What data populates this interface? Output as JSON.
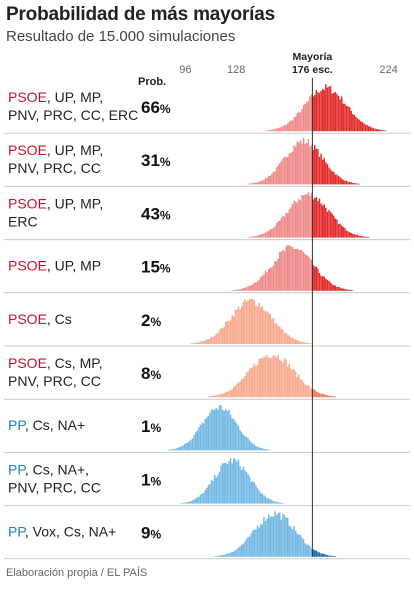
{
  "title": "Probabilidad de más mayorías",
  "subtitle": "Resultado de 15.000 simulaciones",
  "source": "Elaboración propia / EL PAÍS",
  "chart_data": {
    "type": "histogram",
    "x_ticks": [
      96,
      128,
      176,
      224
    ],
    "x_tick_labels": [
      "96",
      "128",
      "",
      "224"
    ],
    "xlim": [
      80,
      240
    ],
    "majority_line": {
      "value": 176,
      "label_1": "Mayoría",
      "label_2": "176 esc."
    },
    "prob_header": "Prob.",
    "colors": {
      "psoe_text": "#c8102e",
      "pp_text": "#1b7fc4",
      "red_dark": "#e32a2a",
      "red_light": "#ef8a8a",
      "salmon_dark": "#ee7a5c",
      "salmon_light": "#f6aa8e",
      "blue_light": "#74b9e3",
      "blue_dark": "#1f6fae"
    },
    "rows": [
      {
        "party": "PSOE",
        "rest_line1": ", UP, MP,",
        "line2": "PNV, PRC, CC, ERC",
        "prob": "66",
        "mean": 184,
        "sd": 13,
        "palette": "red"
      },
      {
        "party": "PSOE",
        "rest_line1": ", UP, MP,",
        "line2": "PNV, PRC, CC",
        "prob": "31",
        "mean": 170,
        "sd": 12,
        "palette": "red"
      },
      {
        "party": "PSOE",
        "rest_line1": ", UP, MP,",
        "line2": "ERC",
        "prob": "43",
        "mean": 173,
        "sd": 13,
        "palette": "red"
      },
      {
        "party": "PSOE",
        "rest_line1": ", UP, MP",
        "line2": "",
        "prob": "15",
        "mean": 163,
        "sd": 13,
        "palette": "red"
      },
      {
        "party": "PSOE",
        "rest_line1": ", Cs",
        "line2": "",
        "prob": "2",
        "mean": 137,
        "sd": 13,
        "palette": "salmon"
      },
      {
        "party": "PSOE",
        "rest_line1": ", Cs, MP,",
        "line2": "PNV, PRC, CC",
        "prob": "8",
        "mean": 150,
        "sd": 14,
        "palette": "salmon"
      },
      {
        "party": "PP",
        "rest_line1": ", Cs, NA+",
        "line2": "",
        "prob": "1",
        "mean": 117,
        "sd": 11,
        "palette": "blue"
      },
      {
        "party": "PP",
        "rest_line1": ", Cs, NA+,",
        "line2": "PNV, PRC, CC",
        "prob": "1",
        "mean": 125,
        "sd": 11,
        "palette": "blue"
      },
      {
        "party": "PP",
        "rest_line1": ", Vox, Cs, NA+",
        "line2": "",
        "prob": "9",
        "mean": 152,
        "sd": 13,
        "palette": "blue"
      }
    ]
  }
}
